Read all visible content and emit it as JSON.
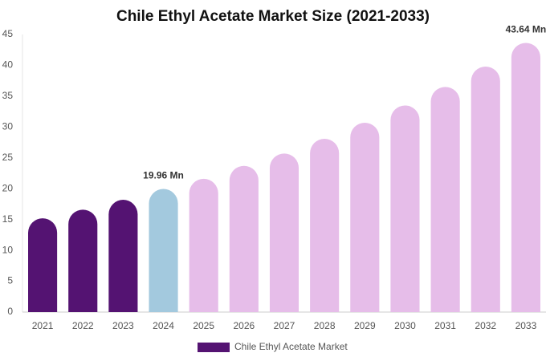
{
  "chart_data": {
    "type": "bar",
    "title": "Chile Ethyl Acetate Market Size (2021-2033)",
    "categories": [
      "2021",
      "2022",
      "2023",
      "2024",
      "2025",
      "2026",
      "2027",
      "2028",
      "2029",
      "2030",
      "2031",
      "2032",
      "2033"
    ],
    "series": [
      {
        "name": "Chile Ethyl Acetate Market",
        "color": "#541372",
        "colors": [
          "#541372",
          "#541372",
          "#541372",
          "#a3c9de",
          "#e6bde9",
          "#e6bde9",
          "#e6bde9",
          "#e6bde9",
          "#e6bde9",
          "#e6bde9",
          "#e6bde9",
          "#e6bde9",
          "#e6bde9"
        ],
        "values": [
          15.2,
          16.6,
          18.2,
          19.96,
          21.6,
          23.7,
          25.7,
          28.1,
          30.7,
          33.5,
          36.5,
          39.8,
          43.64
        ],
        "value_labels": [
          null,
          null,
          null,
          "19.96 Mn",
          null,
          null,
          null,
          null,
          null,
          null,
          null,
          null,
          "43.64 Mn"
        ]
      }
    ],
    "ylim": [
      0,
      45
    ],
    "yticks": [
      0,
      5,
      10,
      15,
      20,
      25,
      30,
      35,
      40,
      45
    ],
    "grid": false
  }
}
